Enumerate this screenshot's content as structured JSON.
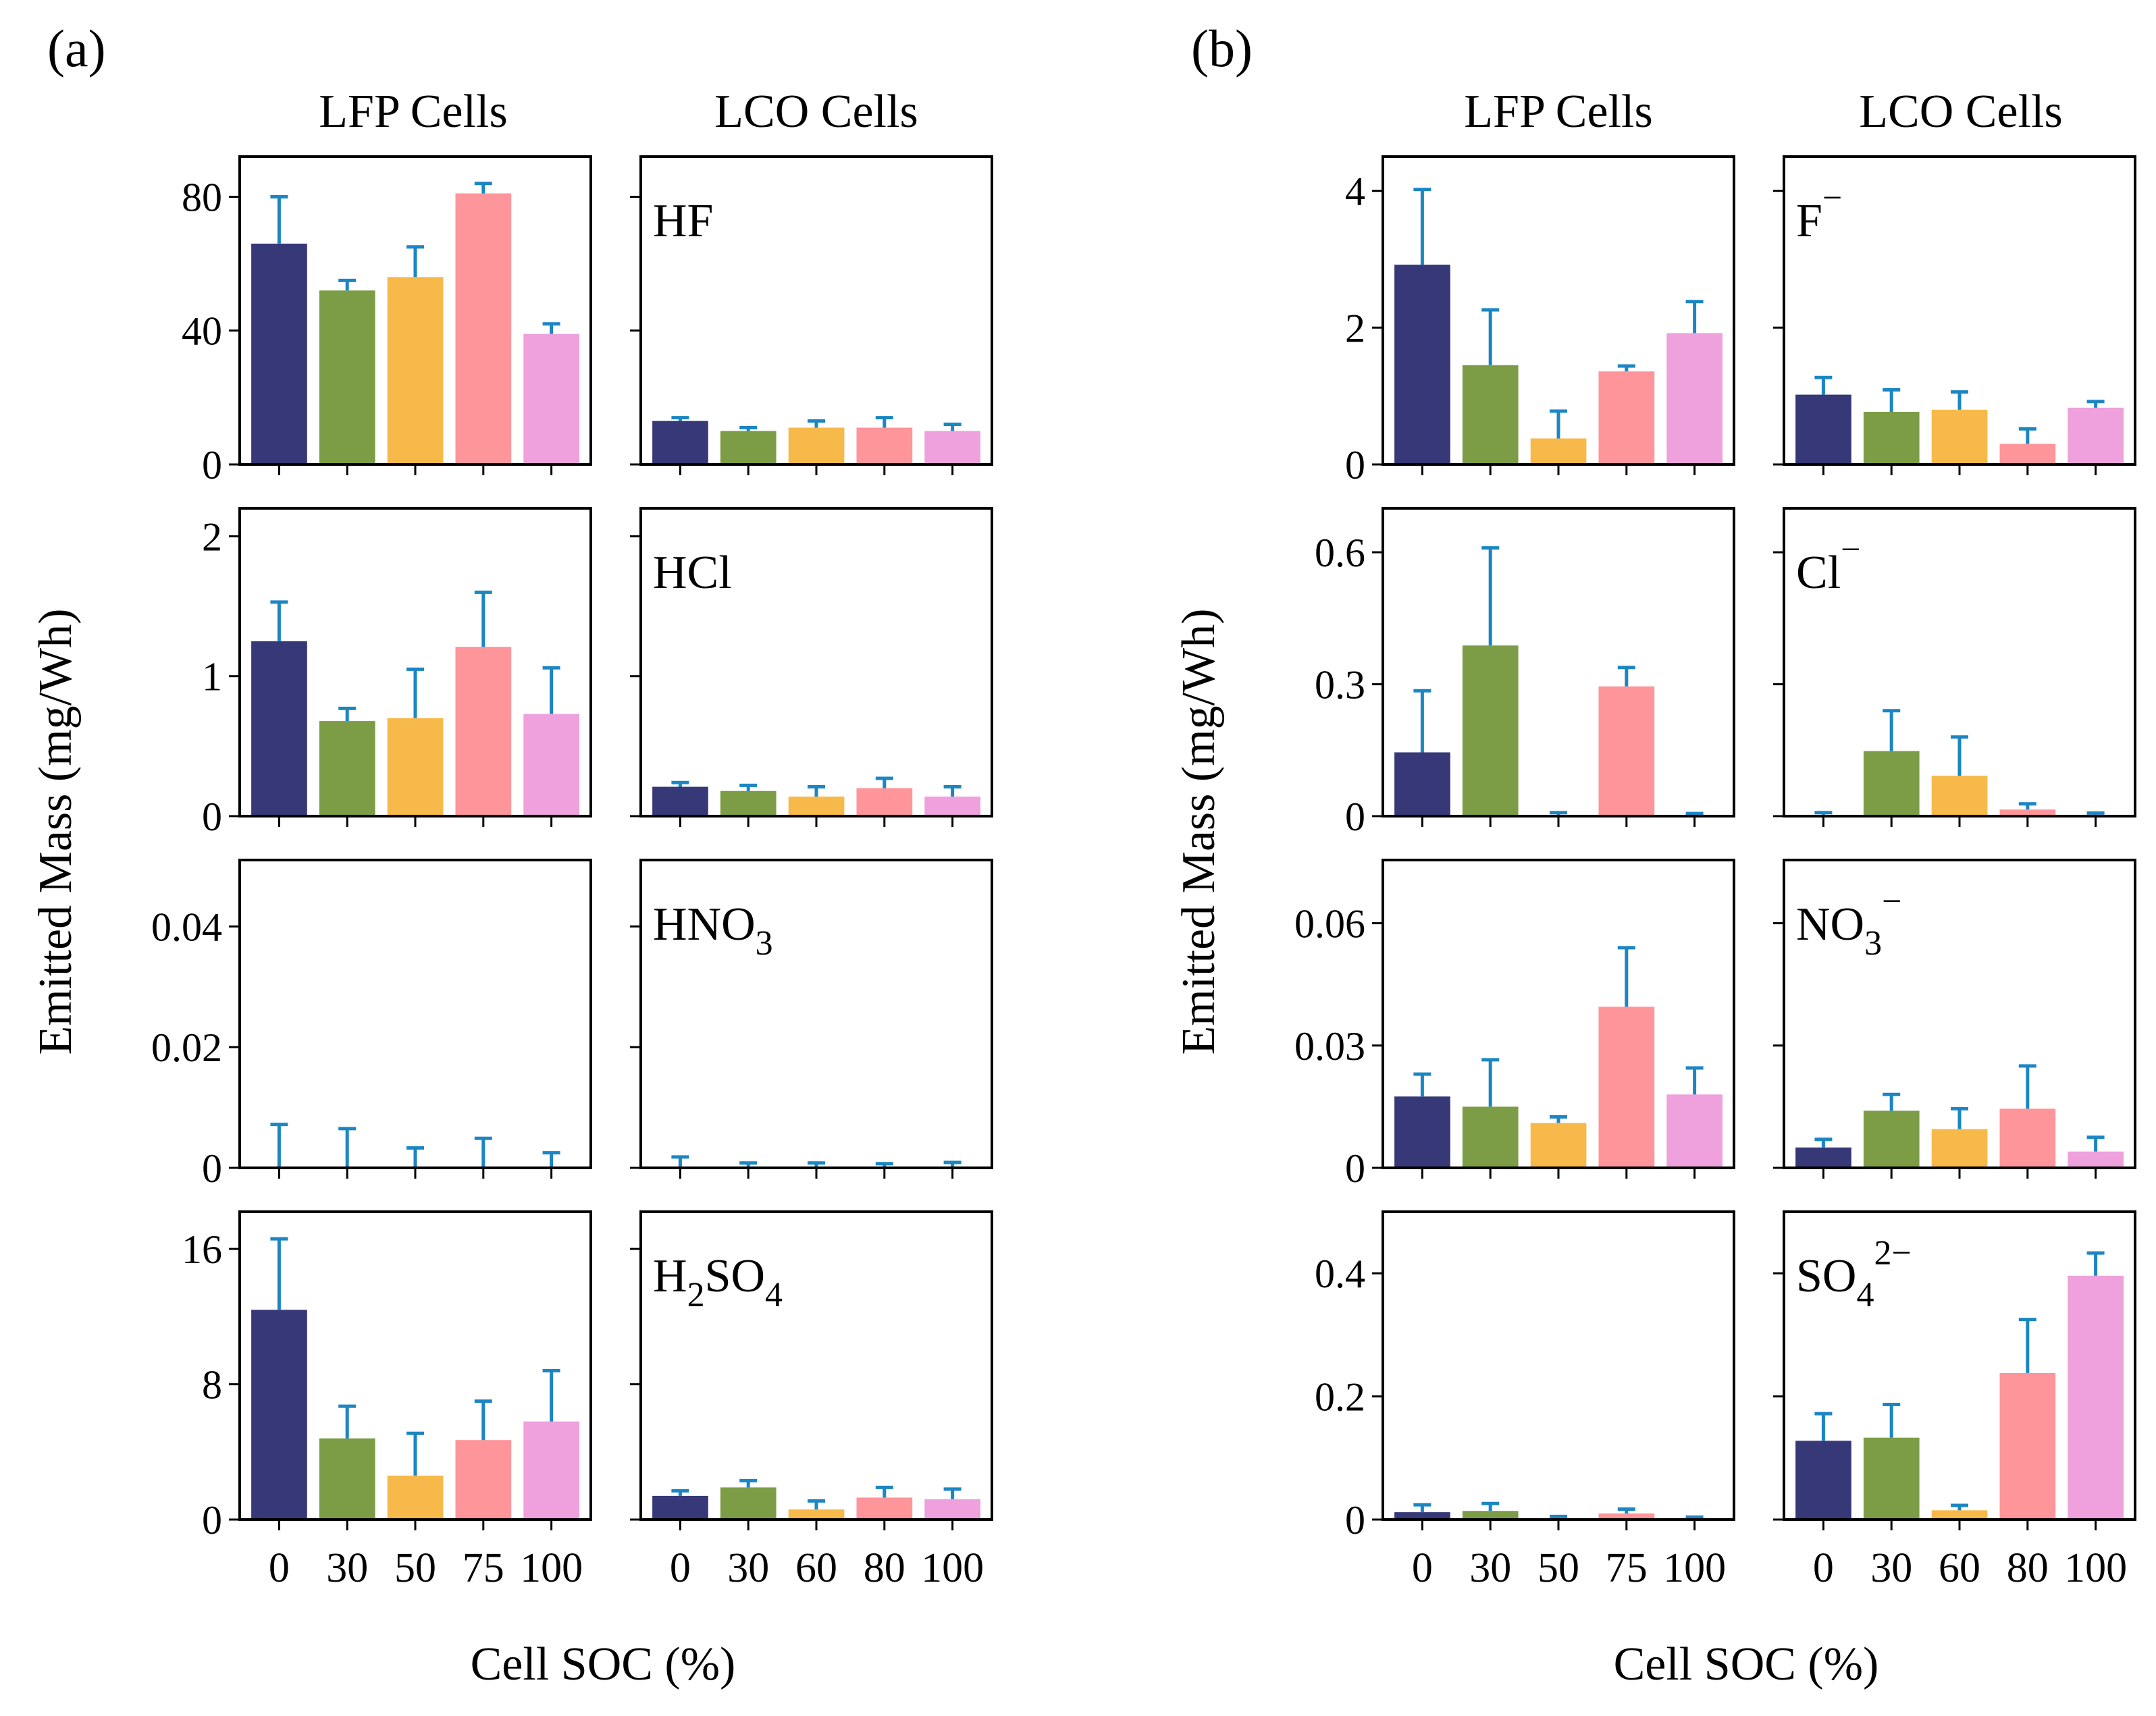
{
  "figure": {
    "panel_labels": [
      "(a)",
      "(b)"
    ],
    "column_titles": [
      "LFP Cells",
      "LCO Cells"
    ],
    "ylabel": "Emitted Mass (mg/Wh)",
    "xlabel": "Cell SOC (%)"
  },
  "colors": {
    "series": [
      "#363877",
      "#7c9d46",
      "#f7b94a",
      "#fd959b",
      "#eea1dc"
    ],
    "error_bar": "#1c86c3",
    "axes": "#000000"
  },
  "chart_data": [
    {
      "panel": "a",
      "row": 0,
      "column": "LFP Cells",
      "type": "bar",
      "species": "",
      "categories": [
        "0",
        "30",
        "50",
        "75",
        "100"
      ],
      "values": [
        66,
        52,
        56,
        81,
        39
      ],
      "error_upper": [
        80,
        55,
        65,
        84,
        42
      ],
      "ylim": [
        0,
        92
      ],
      "yticks": [
        0,
        40,
        80
      ],
      "ytick_labels": [
        "0",
        "40",
        "80"
      ]
    },
    {
      "panel": "a",
      "row": 0,
      "column": "LCO Cells",
      "type": "bar",
      "species": "HF",
      "species_parts": [
        {
          "t": "HF",
          "s": ""
        }
      ],
      "categories": [
        "0",
        "30",
        "60",
        "80",
        "100"
      ],
      "values": [
        13,
        10,
        11,
        11,
        10
      ],
      "error_upper": [
        14,
        11,
        13,
        14,
        12
      ],
      "ylim": [
        0,
        92
      ],
      "yticks": [
        0,
        40,
        80
      ],
      "ytick_labels": [
        "",
        "",
        ""
      ]
    },
    {
      "panel": "a",
      "row": 1,
      "column": "LFP Cells",
      "type": "bar",
      "species": "",
      "categories": [
        "0",
        "30",
        "50",
        "75",
        "100"
      ],
      "values": [
        1.25,
        0.68,
        0.7,
        1.21,
        0.73
      ],
      "error_upper": [
        1.53,
        0.77,
        1.05,
        1.6,
        1.06
      ],
      "ylim": [
        0,
        2.2
      ],
      "yticks": [
        0,
        1,
        2
      ],
      "ytick_labels": [
        "0",
        "1",
        "2"
      ]
    },
    {
      "panel": "a",
      "row": 1,
      "column": "LCO Cells",
      "type": "bar",
      "species": "HCl",
      "species_parts": [
        {
          "t": "HCl",
          "s": ""
        }
      ],
      "categories": [
        "0",
        "30",
        "60",
        "80",
        "100"
      ],
      "values": [
        0.21,
        0.18,
        0.14,
        0.2,
        0.14
      ],
      "error_upper": [
        0.24,
        0.22,
        0.21,
        0.27,
        0.21
      ],
      "ylim": [
        0,
        2.2
      ],
      "yticks": [
        0,
        1,
        2
      ],
      "ytick_labels": [
        "",
        "",
        ""
      ]
    },
    {
      "panel": "a",
      "row": 2,
      "column": "LFP Cells",
      "type": "bar",
      "species": "",
      "categories": [
        "0",
        "30",
        "50",
        "75",
        "100"
      ],
      "values": [
        0,
        0,
        0,
        0,
        0
      ],
      "error_upper": [
        0.0072,
        0.0065,
        0.0033,
        0.0049,
        0.0025
      ],
      "ylim": [
        0,
        0.051
      ],
      "yticks": [
        0,
        0.02,
        0.04
      ],
      "ytick_labels": [
        "0",
        "0.02",
        "0.04"
      ]
    },
    {
      "panel": "a",
      "row": 2,
      "column": "LCO Cells",
      "type": "bar",
      "species": "HNO3",
      "species_parts": [
        {
          "t": "HNO",
          "s": ""
        },
        {
          "t": "3",
          "s": "sub"
        }
      ],
      "categories": [
        "0",
        "30",
        "60",
        "80",
        "100"
      ],
      "values": [
        0,
        0,
        0,
        0,
        0
      ],
      "error_upper": [
        0.0018,
        0.0008,
        0.0008,
        0.0007,
        0.0009
      ],
      "ylim": [
        0,
        0.051
      ],
      "yticks": [
        0,
        0.02,
        0.04
      ],
      "ytick_labels": [
        "",
        "",
        ""
      ]
    },
    {
      "panel": "a",
      "row": 3,
      "column": "LFP Cells",
      "type": "bar",
      "species": "",
      "categories": [
        "0",
        "30",
        "50",
        "75",
        "100"
      ],
      "values": [
        12.4,
        4.8,
        2.6,
        4.7,
        5.8
      ],
      "error_upper": [
        16.6,
        6.7,
        5.1,
        7.0,
        8.8
      ],
      "ylim": [
        0,
        18.2
      ],
      "yticks": [
        0,
        8,
        16
      ],
      "ytick_labels": [
        "0",
        "8",
        "16"
      ]
    },
    {
      "panel": "a",
      "row": 3,
      "column": "LCO Cells",
      "type": "bar",
      "species": "H2SO4",
      "species_parts": [
        {
          "t": "H",
          "s": ""
        },
        {
          "t": "2",
          "s": "sub"
        },
        {
          "t": "SO",
          "s": ""
        },
        {
          "t": "4",
          "s": "sub"
        }
      ],
      "categories": [
        "0",
        "30",
        "60",
        "80",
        "100"
      ],
      "values": [
        1.4,
        1.9,
        0.6,
        1.3,
        1.2
      ],
      "error_upper": [
        1.7,
        2.3,
        1.1,
        1.9,
        1.8
      ],
      "ylim": [
        0,
        18.2
      ],
      "yticks": [
        0,
        8,
        16
      ],
      "ytick_labels": [
        "",
        "",
        ""
      ]
    },
    {
      "panel": "b",
      "row": 0,
      "column": "LFP Cells",
      "type": "bar",
      "species": "",
      "categories": [
        "0",
        "30",
        "50",
        "75",
        "100"
      ],
      "values": [
        2.92,
        1.45,
        0.38,
        1.36,
        1.92
      ],
      "error_upper": [
        4.02,
        2.26,
        0.78,
        1.44,
        2.38
      ],
      "ylim": [
        0,
        4.5
      ],
      "yticks": [
        0,
        2,
        4
      ],
      "ytick_labels": [
        "0",
        "2",
        "4"
      ]
    },
    {
      "panel": "b",
      "row": 0,
      "column": "LCO Cells",
      "type": "bar",
      "species": "F−",
      "species_parts": [
        {
          "t": "F",
          "s": ""
        },
        {
          "t": "−",
          "s": "sup"
        }
      ],
      "categories": [
        "0",
        "30",
        "60",
        "80",
        "100"
      ],
      "values": [
        1.02,
        0.77,
        0.8,
        0.3,
        0.83
      ],
      "error_upper": [
        1.27,
        1.09,
        1.06,
        0.52,
        0.92
      ],
      "ylim": [
        0,
        4.5
      ],
      "yticks": [
        0,
        2,
        4
      ],
      "ytick_labels": [
        "",
        "",
        ""
      ]
    },
    {
      "panel": "b",
      "row": 1,
      "column": "LFP Cells",
      "type": "bar",
      "species": "",
      "categories": [
        "0",
        "30",
        "50",
        "75",
        "100"
      ],
      "values": [
        0.145,
        0.388,
        0.002,
        0.295,
        0.001
      ],
      "error_upper": [
        0.285,
        0.61,
        0.008,
        0.338,
        0.006
      ],
      "ylim": [
        0,
        0.7
      ],
      "yticks": [
        0,
        0.3,
        0.6
      ],
      "ytick_labels": [
        "0",
        "0.3",
        "0.6"
      ]
    },
    {
      "panel": "b",
      "row": 1,
      "column": "LCO Cells",
      "type": "bar",
      "species": "Cl−",
      "species_parts": [
        {
          "t": "Cl",
          "s": ""
        },
        {
          "t": "−",
          "s": "sup"
        }
      ],
      "categories": [
        "0",
        "30",
        "60",
        "80",
        "100"
      ],
      "values": [
        0.003,
        0.148,
        0.092,
        0.015,
        0.002
      ],
      "error_upper": [
        0.008,
        0.24,
        0.18,
        0.028,
        0.007
      ],
      "ylim": [
        0,
        0.7
      ],
      "yticks": [
        0,
        0.3,
        0.6
      ],
      "ytick_labels": [
        "",
        "",
        ""
      ]
    },
    {
      "panel": "b",
      "row": 2,
      "column": "LFP Cells",
      "type": "bar",
      "species": "",
      "categories": [
        "0",
        "30",
        "50",
        "75",
        "100"
      ],
      "values": [
        0.0175,
        0.015,
        0.011,
        0.0395,
        0.018
      ],
      "error_upper": [
        0.023,
        0.0265,
        0.0125,
        0.054,
        0.0245
      ],
      "ylim": [
        0,
        0.0755
      ],
      "yticks": [
        0,
        0.03,
        0.06
      ],
      "ytick_labels": [
        "0",
        "0.03",
        "0.06"
      ]
    },
    {
      "panel": "b",
      "row": 2,
      "column": "LCO Cells",
      "type": "bar",
      "species": "NO3−",
      "species_parts": [
        {
          "t": "NO",
          "s": ""
        },
        {
          "t": "3",
          "s": "sub"
        },
        {
          "t": "−",
          "s": "sup"
        }
      ],
      "categories": [
        "0",
        "30",
        "60",
        "80",
        "100"
      ],
      "values": [
        0.005,
        0.014,
        0.0095,
        0.0145,
        0.004
      ],
      "error_upper": [
        0.007,
        0.018,
        0.0145,
        0.025,
        0.0075
      ],
      "ylim": [
        0,
        0.0755
      ],
      "yticks": [
        0,
        0.03,
        0.06
      ],
      "ytick_labels": [
        "",
        "",
        ""
      ]
    },
    {
      "panel": "b",
      "row": 3,
      "column": "LFP Cells",
      "type": "bar",
      "species": "",
      "categories": [
        "0",
        "30",
        "50",
        "75",
        "100"
      ],
      "values": [
        0.012,
        0.014,
        0.001,
        0.01,
        0.001
      ],
      "error_upper": [
        0.024,
        0.026,
        0.005,
        0.017,
        0.004
      ],
      "ylim": [
        0,
        0.5
      ],
      "yticks": [
        0,
        0.2,
        0.4
      ],
      "ytick_labels": [
        "0",
        "0.2",
        "0.4"
      ]
    },
    {
      "panel": "b",
      "row": 3,
      "column": "LCO Cells",
      "type": "bar",
      "species": "SO42−",
      "species_parts": [
        {
          "t": "SO",
          "s": ""
        },
        {
          "t": "4",
          "s": "sub"
        },
        {
          "t": "2−",
          "s": "sup"
        }
      ],
      "categories": [
        "0",
        "30",
        "60",
        "80",
        "100"
      ],
      "values": [
        0.128,
        0.133,
        0.015,
        0.238,
        0.396
      ],
      "error_upper": [
        0.172,
        0.187,
        0.023,
        0.325,
        0.433
      ],
      "ylim": [
        0,
        0.5
      ],
      "yticks": [
        0,
        0.2,
        0.4
      ],
      "ytick_labels": [
        "",
        "",
        ""
      ]
    }
  ]
}
